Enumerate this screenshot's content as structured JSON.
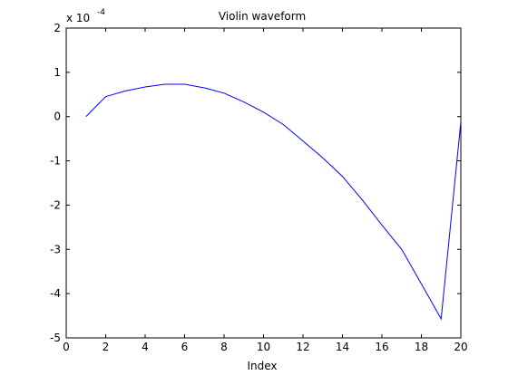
{
  "chart_data": {
    "type": "line",
    "title": "Violin waveform",
    "xlabel": "Index",
    "ylabel": "",
    "xlim": [
      0,
      20
    ],
    "ylim": [
      -5,
      2
    ],
    "y_scale_label": "x 10",
    "y_scale_exponent": "-4",
    "xticks": [
      "0",
      "2",
      "4",
      "6",
      "8",
      "10",
      "12",
      "14",
      "16",
      "18",
      "20"
    ],
    "yticks": [
      "-5",
      "-4",
      "-3",
      "-2",
      "-1",
      "0",
      "1",
      "2"
    ],
    "grid": false,
    "line_color": "#0000ff",
    "series": [
      {
        "x": [
          1,
          2,
          3,
          4,
          5,
          6,
          7,
          8,
          9,
          10,
          11,
          12,
          13,
          14,
          15,
          16,
          17,
          18,
          19,
          20
        ],
        "y": [
          0,
          0.45,
          0.58,
          0.67,
          0.73,
          0.73,
          0.65,
          0.53,
          0.33,
          0.1,
          -0.18,
          -0.55,
          -0.93,
          -1.35,
          -1.88,
          -2.45,
          -3.0,
          -3.78,
          -4.57,
          -0.12
        ]
      }
    ]
  }
}
